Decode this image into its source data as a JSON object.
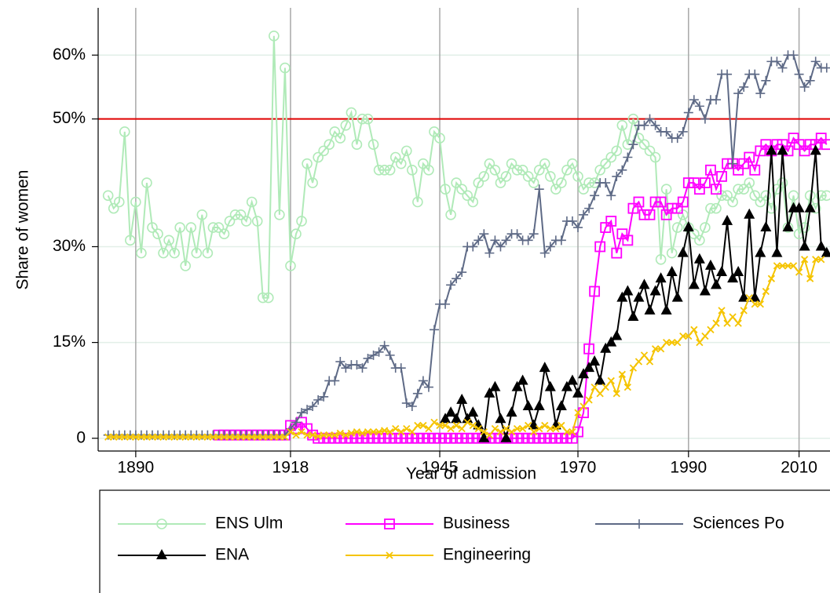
{
  "chart_data": {
    "type": "line",
    "x_label": "Year of admission",
    "y_label": "Share of women",
    "x": [
      1885,
      1886,
      1887,
      1888,
      1889,
      1890,
      1891,
      1892,
      1893,
      1894,
      1895,
      1896,
      1897,
      1898,
      1899,
      1900,
      1901,
      1902,
      1903,
      1904,
      1905,
      1906,
      1907,
      1908,
      1909,
      1910,
      1911,
      1912,
      1913,
      1914,
      1915,
      1916,
      1917,
      1918,
      1919,
      1920,
      1921,
      1922,
      1923,
      1924,
      1925,
      1926,
      1927,
      1928,
      1929,
      1930,
      1931,
      1932,
      1933,
      1934,
      1935,
      1936,
      1937,
      1938,
      1939,
      1940,
      1941,
      1942,
      1943,
      1944,
      1945,
      1946,
      1947,
      1948,
      1949,
      1950,
      1951,
      1952,
      1953,
      1954,
      1955,
      1956,
      1957,
      1958,
      1959,
      1960,
      1961,
      1962,
      1963,
      1964,
      1965,
      1966,
      1967,
      1968,
      1969,
      1970,
      1971,
      1972,
      1973,
      1974,
      1975,
      1976,
      1977,
      1978,
      1979,
      1980,
      1981,
      1982,
      1983,
      1984,
      1985,
      1986,
      1987,
      1988,
      1989,
      1990,
      1991,
      1992,
      1993,
      1994,
      1995,
      1996,
      1997,
      1998,
      1999,
      2000,
      2001,
      2002,
      2003,
      2004,
      2005,
      2006,
      2007,
      2008,
      2009,
      2010,
      2011,
      2012,
      2013,
      2014,
      2015
    ],
    "series": [
      {
        "name": "ENS Ulm",
        "color": "#b0eab8",
        "marker": "circle",
        "values": [
          38,
          36,
          37,
          48,
          31,
          37,
          29,
          40,
          33,
          32,
          29,
          31,
          29,
          33,
          27,
          33,
          29,
          35,
          29,
          33,
          33,
          32,
          34,
          35,
          35,
          34,
          37,
          34,
          22,
          22,
          63,
          35,
          58,
          27,
          32,
          34,
          43,
          40,
          44,
          45,
          46,
          48,
          47,
          49,
          51,
          46,
          50,
          50,
          46,
          42,
          42,
          42,
          44,
          43,
          45,
          42,
          37,
          43,
          42,
          48,
          47,
          39,
          35,
          40,
          39,
          38,
          37,
          40,
          41,
          43,
          42,
          40,
          41,
          43,
          42,
          42,
          41,
          40,
          42,
          43,
          41,
          39,
          40,
          42,
          43,
          41,
          39,
          40,
          40,
          42,
          43,
          44,
          45,
          49,
          46,
          50,
          47,
          46,
          45,
          44,
          28,
          39,
          29,
          33,
          35,
          33,
          32,
          31,
          33,
          36,
          36,
          38,
          38,
          37,
          39,
          39,
          40,
          38,
          37,
          38,
          36,
          39,
          40,
          33,
          38,
          32,
          33,
          38,
          36,
          38,
          38
        ]
      },
      {
        "name": "Business",
        "color": "#ff00ff",
        "marker": "square",
        "values": [
          null,
          null,
          null,
          null,
          null,
          null,
          null,
          null,
          null,
          null,
          null,
          null,
          null,
          null,
          null,
          null,
          null,
          null,
          null,
          null,
          0.5,
          0.5,
          0.5,
          0.5,
          0.5,
          0.5,
          0.5,
          0.5,
          0.5,
          0.5,
          0.5,
          0.5,
          0.5,
          2,
          1.5,
          2.5,
          1.5,
          0.5,
          0,
          0,
          0,
          0,
          0,
          0,
          0,
          0,
          0,
          0,
          0,
          0,
          0,
          0,
          0,
          0,
          0,
          0,
          0,
          0,
          0,
          0,
          0,
          0,
          0,
          0,
          0,
          0,
          0,
          0,
          0,
          0,
          0,
          0,
          0,
          0,
          0,
          0,
          0,
          0,
          0,
          0,
          0,
          0,
          0,
          0,
          0,
          1,
          4,
          14,
          23,
          30,
          33,
          34,
          29,
          32,
          31,
          36,
          37,
          35,
          35,
          37,
          37,
          35,
          36,
          36,
          37,
          40,
          40,
          39,
          40,
          42,
          39,
          41,
          43,
          43,
          42,
          43,
          44,
          42,
          45,
          46,
          45,
          46,
          46,
          45,
          47,
          46,
          45,
          46,
          46,
          47,
          46
        ]
      },
      {
        "name": "Sciences Po",
        "color": "#5e6a86",
        "marker": "plus",
        "values": [
          0.5,
          0.5,
          0.5,
          0.5,
          0.5,
          0.5,
          0.5,
          0.5,
          0.5,
          0.5,
          0.5,
          0.5,
          0.5,
          0.5,
          0.5,
          0.5,
          0.5,
          0.5,
          0.5,
          0.5,
          0.5,
          0.5,
          0.5,
          0.5,
          0.5,
          0.5,
          0.5,
          0.5,
          0.5,
          0.5,
          0.5,
          0.5,
          0.5,
          1.5,
          2.5,
          4,
          4.5,
          5,
          6,
          6.5,
          9,
          9,
          12,
          11,
          11.5,
          11.5,
          11,
          12.5,
          13,
          13.5,
          14.5,
          13,
          11,
          11,
          5.5,
          5,
          7,
          9,
          8,
          17,
          21,
          21,
          24,
          25,
          26,
          30,
          30,
          31,
          32,
          29,
          31,
          30,
          31,
          32,
          32,
          31,
          31,
          32,
          39,
          29,
          30,
          31,
          31,
          34,
          34,
          33,
          35,
          36,
          38,
          40,
          40,
          38,
          41,
          42,
          44,
          46,
          49,
          49,
          50,
          49,
          48,
          48,
          47,
          47,
          48,
          51,
          53,
          52,
          50,
          53,
          53,
          57,
          57,
          43,
          54,
          55,
          57,
          57,
          54,
          56,
          59,
          59,
          58,
          60,
          60,
          57,
          55,
          56,
          59,
          58,
          58
        ]
      },
      {
        "name": "ENA",
        "color": "#000000",
        "marker": "triangle",
        "values": [
          null,
          null,
          null,
          null,
          null,
          null,
          null,
          null,
          null,
          null,
          null,
          null,
          null,
          null,
          null,
          null,
          null,
          null,
          null,
          null,
          null,
          null,
          null,
          null,
          null,
          null,
          null,
          null,
          null,
          null,
          null,
          null,
          null,
          null,
          null,
          null,
          null,
          null,
          null,
          null,
          null,
          null,
          null,
          null,
          null,
          null,
          null,
          null,
          null,
          null,
          null,
          null,
          null,
          null,
          null,
          null,
          null,
          null,
          null,
          null,
          null,
          3,
          4,
          3,
          6,
          3,
          4,
          2,
          0,
          7,
          8,
          3,
          0,
          4,
          8,
          9,
          5,
          2,
          5,
          11,
          8,
          2,
          5,
          8,
          9,
          7,
          10,
          11,
          12,
          9,
          14,
          15,
          16,
          22,
          23,
          19,
          22,
          24,
          20,
          23,
          25,
          20,
          26,
          22,
          29,
          33,
          24,
          28,
          23,
          27,
          24,
          26,
          34,
          25,
          26,
          22,
          35,
          22,
          29,
          33,
          45,
          29,
          45,
          33,
          36,
          36,
          30,
          36,
          45,
          30,
          29
        ]
      },
      {
        "name": "Engineering",
        "color": "#f5c400",
        "marker": "cross",
        "values": [
          0.2,
          0.2,
          0.2,
          0.2,
          0.2,
          0.2,
          0.2,
          0.2,
          0.2,
          0.2,
          0.2,
          0.2,
          0.2,
          0.2,
          0.2,
          0.2,
          0.2,
          0.2,
          0.2,
          0.2,
          0.2,
          0.2,
          0.2,
          0.2,
          0.2,
          0.2,
          0.2,
          0.2,
          0.2,
          0.2,
          0.2,
          0.2,
          0.2,
          1,
          0.5,
          1,
          0.5,
          0.5,
          0.3,
          0.5,
          0.5,
          0.5,
          0.8,
          0.5,
          0.8,
          1,
          0.8,
          1,
          1,
          1,
          1.2,
          1,
          1.5,
          1,
          1.5,
          1,
          2,
          2,
          1.5,
          2.5,
          2,
          2,
          1.5,
          2,
          1.5,
          2.5,
          2,
          1.5,
          1,
          0.5,
          1.5,
          1,
          1.5,
          1,
          1.5,
          1.5,
          2,
          1,
          1.5,
          2,
          1.5,
          1.5,
          2,
          1,
          1,
          4,
          5,
          6,
          8,
          7,
          8,
          9,
          7,
          10,
          8,
          11,
          12,
          13,
          12,
          14,
          14,
          15,
          15,
          15,
          16,
          16,
          17,
          15,
          16,
          17,
          18,
          20,
          18,
          19,
          18,
          20,
          22,
          21,
          21,
          23,
          25,
          27,
          27,
          27,
          27,
          26,
          28,
          25,
          28,
          28,
          null
        ]
      }
    ],
    "xlim": [
      1883.2,
      2015.6
    ],
    "xticks": [
      1890,
      1918,
      1945,
      1970,
      1990,
      2010
    ],
    "ylim": [
      -2,
      67.4
    ],
    "yticks": [
      0,
      {
        "value": 15,
        "label": "15%"
      },
      {
        "value": 30,
        "label": "30%"
      },
      {
        "value": 50,
        "label": "50%"
      },
      {
        "value": 60,
        "label": "60%"
      }
    ],
    "reference_line": 50,
    "reference_color": "#e00000",
    "grid": true
  }
}
